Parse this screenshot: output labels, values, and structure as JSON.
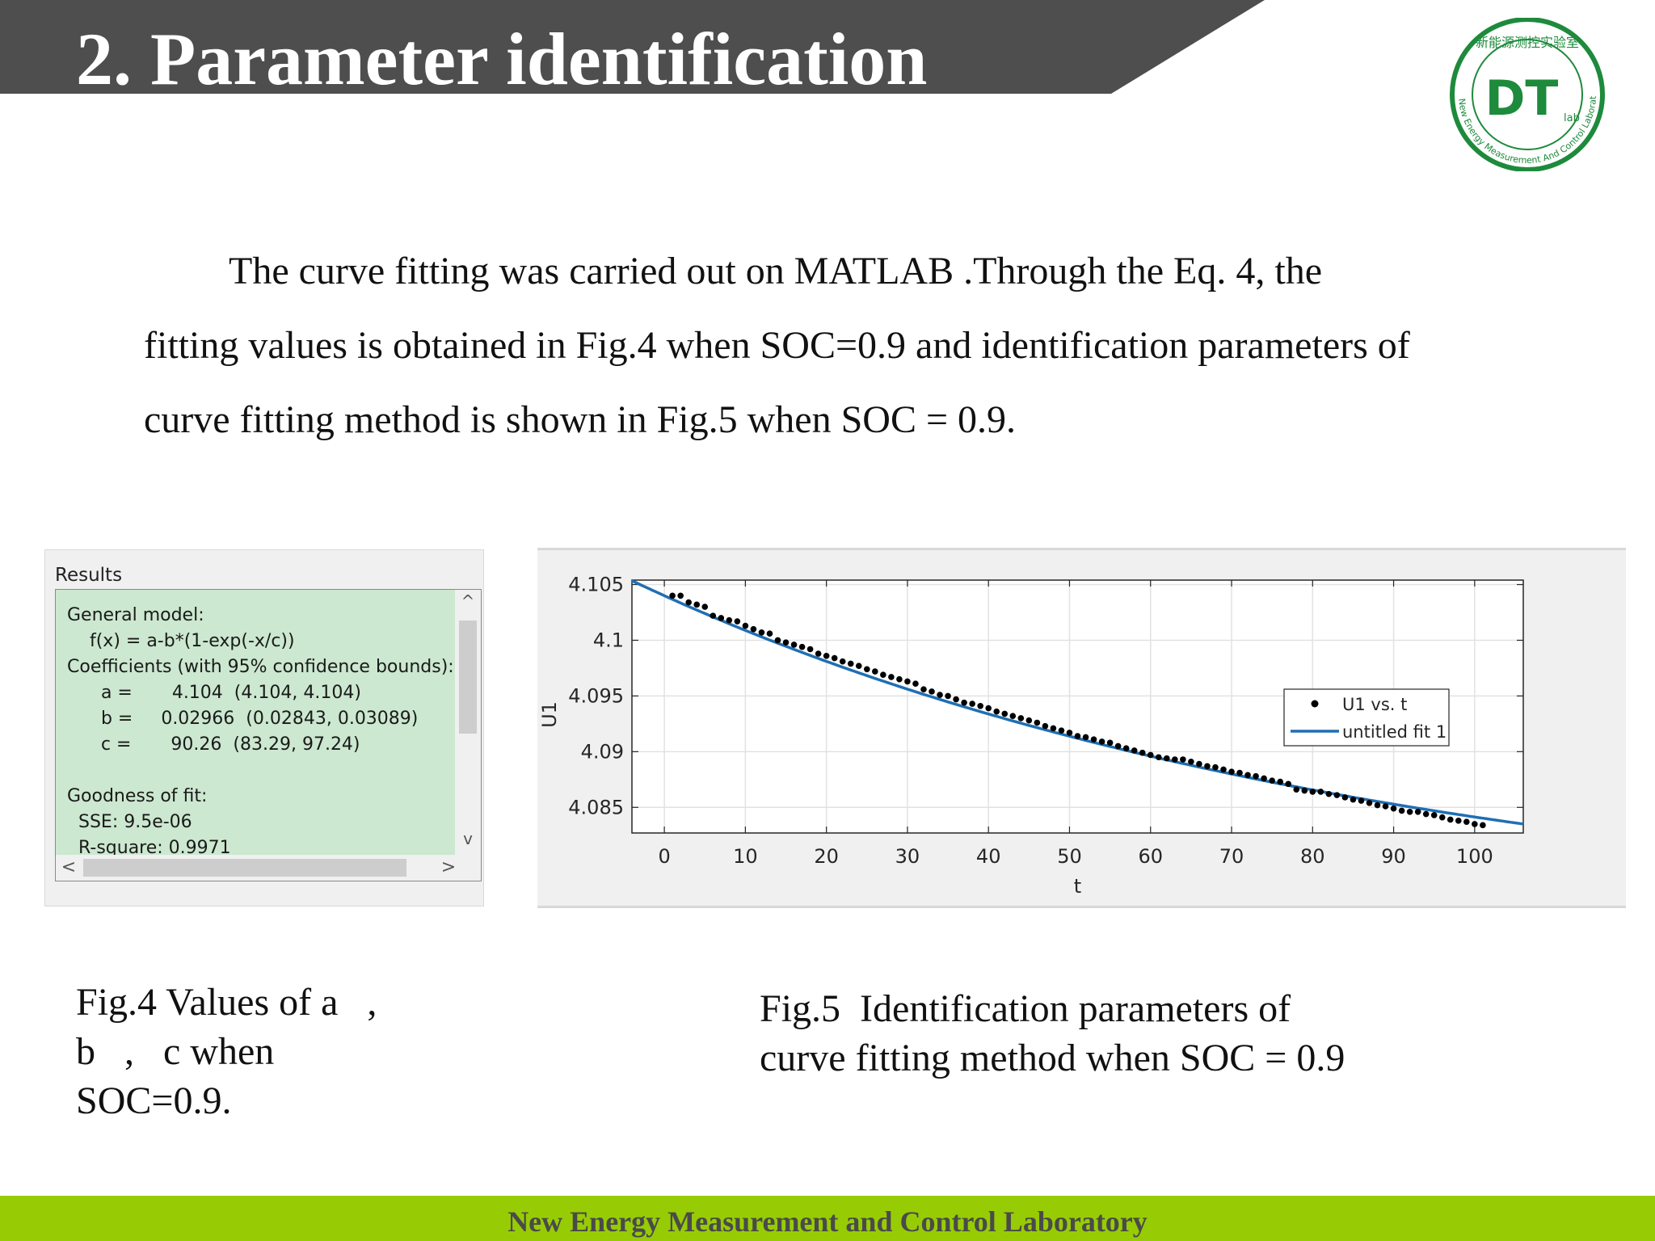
{
  "header": {
    "title": "2. Parameter identification"
  },
  "logo": {
    "mark": "DT",
    "sub": "lab",
    "ring_text": "New Energy Measurement And Control Laboratory",
    "cn_text": "新能源测控实验室",
    "color": "#1e8a3c"
  },
  "intro": {
    "line1": "The curve fitting was carried out on MATLAB .Through the Eq. 4, the",
    "line2": "fitting values is obtained in Fig.4 when SOC=0.9 and identification parameters of",
    "line3": "curve fitting method is shown in Fig.5 when SOC = 0.9."
  },
  "results": {
    "title": "Results",
    "lines": [
      "General model:",
      "    f(x) = a-b*(1-exp(-x/c))",
      "Coefficients (with 95% confidence bounds):",
      "      a =       4.104  (4.104, 4.104)",
      "      b =     0.02966  (0.02843, 0.03089)",
      "      c =       90.26  (83.29, 97.24)",
      "",
      "Goodness of fit:",
      "  SSE: 9.5e-06",
      "  R-square: 0.9971"
    ],
    "up_arrow": "^",
    "down_arrow": "v",
    "left_arrow": "<",
    "right_arrow": ">"
  },
  "chart_data": {
    "type": "scatter",
    "xlabel": "t",
    "ylabel": "U1",
    "xlim": [
      -4,
      106
    ],
    "ylim": [
      4.0827,
      4.1054
    ],
    "x_ticks": [
      "0",
      "10",
      "20",
      "30",
      "40",
      "50",
      "60",
      "70",
      "80",
      "90",
      "100"
    ],
    "x_tick_values": [
      0,
      10,
      20,
      30,
      40,
      50,
      60,
      70,
      80,
      90,
      100
    ],
    "y_ticks": [
      "4.105",
      "4.1",
      "4.095",
      "4.09",
      "4.085"
    ],
    "y_tick_values": [
      4.105,
      4.1,
      4.095,
      4.09,
      4.085
    ],
    "grid": true,
    "legend_position": "right",
    "series": [
      {
        "name": "U1 vs. t",
        "kind": "points",
        "color": "#000000",
        "x": [
          1,
          2,
          3,
          4,
          5,
          6,
          7,
          8,
          9,
          10,
          11,
          12,
          13,
          14,
          15,
          16,
          17,
          18,
          19,
          20,
          21,
          22,
          23,
          24,
          25,
          26,
          27,
          28,
          29,
          30,
          31,
          32,
          33,
          34,
          35,
          36,
          37,
          38,
          39,
          40,
          41,
          42,
          43,
          44,
          45,
          46,
          47,
          48,
          49,
          50,
          51,
          52,
          53,
          54,
          55,
          56,
          57,
          58,
          59,
          60,
          61,
          62,
          63,
          64,
          65,
          66,
          67,
          68,
          69,
          70,
          71,
          72,
          73,
          74,
          75,
          76,
          77,
          78,
          79,
          80,
          81,
          82,
          83,
          84,
          85,
          86,
          87,
          88,
          89,
          90,
          91,
          92,
          93,
          94,
          95,
          96,
          97,
          98,
          99,
          100,
          101
        ],
        "y": [
          4.104,
          4.104,
          4.1034,
          4.1032,
          4.103,
          4.1022,
          4.102,
          4.1018,
          4.1017,
          4.1013,
          4.101,
          4.1007,
          4.1006,
          4.1,
          4.0998,
          4.0996,
          4.0994,
          4.0992,
          4.0988,
          4.0986,
          4.0984,
          4.0981,
          4.0979,
          4.0977,
          4.0974,
          4.0972,
          4.0969,
          4.0967,
          4.0965,
          4.0963,
          4.0961,
          4.0956,
          4.0954,
          4.0951,
          4.095,
          4.0947,
          4.0944,
          4.0943,
          4.0941,
          4.0939,
          4.0936,
          4.0934,
          4.0932,
          4.093,
          4.0928,
          4.0926,
          4.0923,
          4.0921,
          4.0919,
          4.0917,
          4.0914,
          4.0913,
          4.0911,
          4.0909,
          4.0908,
          4.0905,
          4.0903,
          4.0901,
          4.0899,
          4.0897,
          4.0895,
          4.0894,
          4.0893,
          4.0893,
          4.0891,
          4.0889,
          4.0887,
          4.0886,
          4.0884,
          4.0882,
          4.0881,
          4.0879,
          4.0878,
          4.0876,
          4.0874,
          4.0873,
          4.0871,
          4.0866,
          4.0865,
          4.0864,
          4.0864,
          4.0862,
          4.0861,
          4.0859,
          4.0857,
          4.0856,
          4.0854,
          4.0852,
          4.0851,
          4.0849,
          4.0847,
          4.0846,
          4.0846,
          4.0844,
          4.0843,
          4.0841,
          4.0839,
          4.0838,
          4.0837,
          4.0835,
          4.0834
        ]
      },
      {
        "name": "untitled fit 1",
        "kind": "fit",
        "color": "#1f6fb4",
        "model": {
          "a": 4.104,
          "b": 0.02966,
          "c": 90.26
        }
      }
    ]
  },
  "captions": {
    "fig4_lines": [
      "Fig.4 Values of a   ,",
      "b   ,   c when",
      "SOC=0.9."
    ],
    "fig5_lines": [
      "Fig.5  Identification parameters of",
      "curve fitting method when SOC = 0.9"
    ]
  },
  "footer": {
    "text": "New Energy Measurement and Control Laboratory",
    "color": "#97cc04"
  }
}
